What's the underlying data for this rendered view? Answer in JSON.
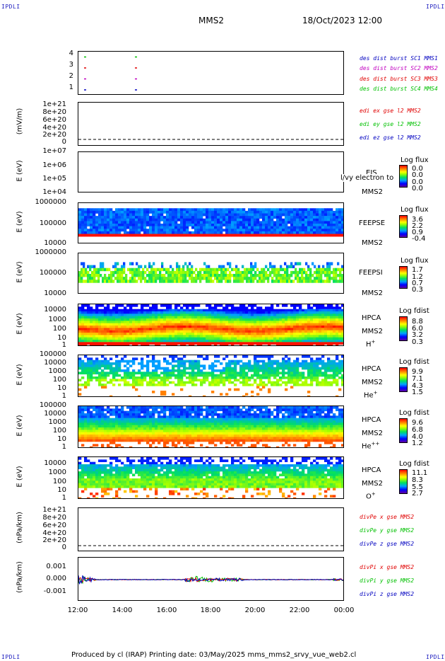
{
  "header": {
    "corner_tl": "IPDLI",
    "corner_tr": "IPDLI",
    "corner_bl": "IPDLI",
    "corner_br": "IPDLI",
    "mission": "MMS2",
    "date": "18/Oct/2023 12:00"
  },
  "footer": {
    "text": "Produced by cl (IRAP)   Printing date: 03/May/2025   mms_mms2_srvy_vue_web2.cl"
  },
  "colors": {
    "red": "#e00000",
    "green": "#00c000",
    "blue": "#0000c0",
    "magenta": "#c000c0"
  },
  "xaxis": {
    "ticks": [
      "12:00",
      "14:00",
      "16:00",
      "18:00",
      "20:00",
      "22:00",
      "00:00"
    ]
  },
  "panels": [
    {
      "id": "des",
      "yticks": [
        "4",
        "3",
        "2",
        "1"
      ],
      "ylabel": "",
      "legend": [
        {
          "text": "des dist burst SC1 MMS1",
          "color": "#0000c0"
        },
        {
          "text": "des dist burst SC2 MMS2",
          "color": "#c000c0"
        },
        {
          "text": "des dist burst SC3 MMS3",
          "color": "#e00000"
        },
        {
          "text": "des dist burst SC4 MMS4",
          "color": "#00c000"
        }
      ]
    },
    {
      "id": "edi",
      "yticks": [
        "1e+21",
        "8e+20",
        "6e+20",
        "4e+20",
        "2e+20",
        "0"
      ],
      "ylabel": "(mV/m)",
      "legend": [
        {
          "text": "edi ex gse l2 MMS2",
          "color": "#e00000"
        },
        {
          "text": "edi ey gse l2 MMS2",
          "color": "#00c000"
        },
        {
          "text": "edi ez gse l2 MMS2",
          "color": "#0000c0"
        }
      ]
    },
    {
      "id": "eis",
      "yticks": [
        "1e+07",
        "1e+06",
        "1e+05",
        "1e+04"
      ],
      "ylabel": "E (eV)",
      "side1": "EIS",
      "side2": "MMS2",
      "overlay": "l/vy electron to",
      "cbtitle": "Log flux",
      "cbvals": [
        "0.0",
        "0.0",
        "0.0",
        "0.0"
      ]
    },
    {
      "id": "feepse",
      "yticks": [
        "1000000",
        "100000",
        "10000"
      ],
      "ylabel": "E (eV)",
      "side1": "FEEPSE",
      "side2": "MMS2",
      "cbtitle": "Log flux",
      "cbvals": [
        "3.6",
        "2.2",
        "0.9",
        "-0.4"
      ]
    },
    {
      "id": "feepsi",
      "yticks": [
        "1000000",
        "100000",
        "10000"
      ],
      "ylabel": "E (eV)",
      "side1": "FEEPSI",
      "side2": "MMS2",
      "cbtitle": "Log flux",
      "cbvals": [
        "1.7",
        "1.2",
        "0.7",
        "0.3"
      ]
    },
    {
      "id": "hpca_h",
      "yticks": [
        "10000",
        "1000",
        "100",
        "10",
        "1"
      ],
      "ylabel": "E (eV)",
      "side1": "HPCA",
      "side2": "MMS2",
      "species": "H",
      "charge": "+",
      "cbtitle": "Log fdist",
      "cbvals": [
        "8.8",
        "6.0",
        "3.2",
        "0.3"
      ]
    },
    {
      "id": "hpca_he",
      "yticks": [
        "100000",
        "10000",
        "1000",
        "100",
        "10",
        "1"
      ],
      "ylabel": "E (eV)",
      "side1": "HPCA",
      "side2": "MMS2",
      "species": "He",
      "charge": "+",
      "cbtitle": "Log fdist",
      "cbvals": [
        "9.9",
        "7.1",
        "4.3",
        "1.5"
      ]
    },
    {
      "id": "hpca_he2",
      "yticks": [
        "100000",
        "10000",
        "1000",
        "100",
        "10",
        "1"
      ],
      "ylabel": "E (eV)",
      "side1": "HPCA",
      "side2": "MMS2",
      "species": "He",
      "charge": "++",
      "cbtitle": "Log fdist",
      "cbvals": [
        "9.6",
        "6.8",
        "4.0",
        "1.2"
      ]
    },
    {
      "id": "hpca_o",
      "yticks": [
        "10000",
        "1000",
        "100",
        "10",
        "1"
      ],
      "ylabel": "E (eV)",
      "side1": "HPCA",
      "side2": "MMS2",
      "species": "O",
      "charge": "+",
      "cbtitle": "Log fdist",
      "cbvals": [
        "11.1",
        "8.3",
        "5.5",
        "2.7"
      ]
    },
    {
      "id": "divpe",
      "yticks": [
        "1e+21",
        "8e+20",
        "6e+20",
        "4e+20",
        "2e+20",
        "0"
      ],
      "ylabel": "(nPa/km)",
      "legend": [
        {
          "text": "divPe x gse MMS2",
          "color": "#e00000"
        },
        {
          "text": "divPe y gse MMS2",
          "color": "#00c000"
        },
        {
          "text": "divPe z gse MMS2",
          "color": "#0000c0"
        }
      ]
    },
    {
      "id": "divpi",
      "yticks": [
        "0.001",
        "0.000",
        "-0.001"
      ],
      "ylabel": "(nPa/km)",
      "legend": [
        {
          "text": "divPi x gse MMS2",
          "color": "#e00000"
        },
        {
          "text": "divPi y gse MMS2",
          "color": "#00c000"
        },
        {
          "text": "divPi z gse MMS2",
          "color": "#0000c0"
        }
      ]
    }
  ],
  "chart_data": [
    {
      "type": "scatter",
      "title": "des dist burst",
      "xlabel": "",
      "ylabel": "",
      "ylim": [
        0.5,
        4.5
      ],
      "x": [
        "12:00",
        "14:30"
      ],
      "series": [
        {
          "name": "des dist burst SC1 MMS1",
          "values": [
            1,
            1
          ]
        },
        {
          "name": "des dist burst SC2 MMS2",
          "values": [
            2,
            2
          ]
        },
        {
          "name": "des dist burst SC3 MMS3",
          "values": [
            3,
            3
          ]
        },
        {
          "name": "des dist burst SC4 MMS4",
          "values": [
            4,
            4
          ]
        }
      ]
    },
    {
      "type": "line",
      "ylabel": "(mV/m)",
      "ylim": [
        0,
        1e+21
      ],
      "series": [
        {
          "name": "edi ex gse l2 MMS2",
          "values": []
        },
        {
          "name": "edi ey gse l2 MMS2",
          "values": []
        },
        {
          "name": "edi ez gse l2 MMS2",
          "values": []
        }
      ]
    },
    {
      "type": "heatmap",
      "ylabel": "E (eV)",
      "ylim": [
        10000.0,
        10000000.0
      ],
      "colorbar": "Log flux",
      "values": []
    },
    {
      "type": "heatmap",
      "ylabel": "E (eV)",
      "ylim": [
        10000.0,
        1000000.0
      ],
      "colorbar": "Log flux",
      "values": []
    },
    {
      "type": "heatmap",
      "ylabel": "E (eV)",
      "ylim": [
        10000.0,
        1000000.0
      ],
      "colorbar": "Log flux",
      "values": []
    },
    {
      "type": "heatmap",
      "ylabel": "E (eV)",
      "ylim": [
        1,
        10000.0
      ],
      "colorbar": "Log fdist",
      "values": []
    },
    {
      "type": "heatmap",
      "ylabel": "E (eV)",
      "ylim": [
        1,
        100000.0
      ],
      "colorbar": "Log fdist",
      "values": []
    },
    {
      "type": "heatmap",
      "ylabel": "E (eV)",
      "ylim": [
        1,
        100000.0
      ],
      "colorbar": "Log fdist",
      "values": []
    },
    {
      "type": "heatmap",
      "ylabel": "E (eV)",
      "ylim": [
        1,
        10000.0
      ],
      "colorbar": "Log fdist",
      "values": []
    },
    {
      "type": "line",
      "ylabel": "(nPa/km)",
      "ylim": [
        0,
        1e+21
      ],
      "series": [
        {
          "name": "divPe x gse MMS2",
          "values": []
        },
        {
          "name": "divPe y gse MMS2",
          "values": []
        },
        {
          "name": "divPe z gse MMS2",
          "values": []
        }
      ]
    },
    {
      "type": "line",
      "ylabel": "(nPa/km)",
      "ylim": [
        -0.0015,
        0.0015
      ],
      "series": [
        {
          "name": "divPi x gse MMS2",
          "values": [
            0.0,
            0.0001,
            0.0,
            0.0,
            0.0
          ]
        },
        {
          "name": "divPi y gse MMS2",
          "values": [
            0.0,
            -0.0002,
            0.0,
            0.0,
            0.0
          ]
        },
        {
          "name": "divPi z gse MMS2",
          "values": [
            0.0,
            0.0,
            0.0,
            0.0,
            0.0
          ]
        }
      ]
    }
  ]
}
